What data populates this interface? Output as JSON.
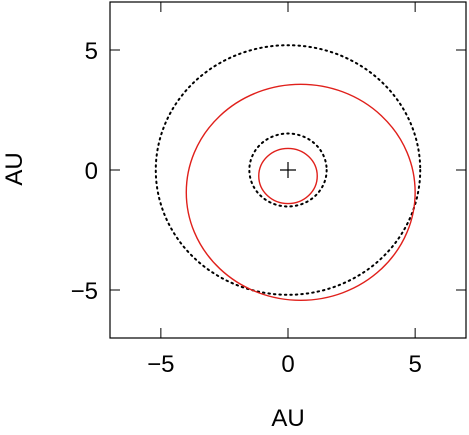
{
  "chart_data": {
    "type": "orbit",
    "xlabel": "AU",
    "ylabel": "AU",
    "xlim": [
      -7,
      7
    ],
    "ylim": [
      -7,
      7
    ],
    "xticks": [
      {
        "value": -5,
        "label": "−5"
      },
      0,
      5
    ],
    "yticks": [
      {
        "value": -5,
        "label": "−5"
      },
      0,
      5
    ],
    "marker": [
      0,
      0
    ],
    "series": [
      {
        "color": "#000000",
        "style": "dotted",
        "center": [
          0,
          0
        ],
        "radius": 5.2
      },
      {
        "color": "#e0201b",
        "style": "solid",
        "center": [
          0.5,
          -0.93
        ],
        "radius": 4.5
      },
      {
        "color": "#000000",
        "style": "dotted",
        "center": [
          0,
          0
        ],
        "radius": 1.52
      },
      {
        "color": "#e0201b",
        "style": "solid",
        "center": [
          0,
          -0.25
        ],
        "radius": 1.15
      }
    ]
  }
}
